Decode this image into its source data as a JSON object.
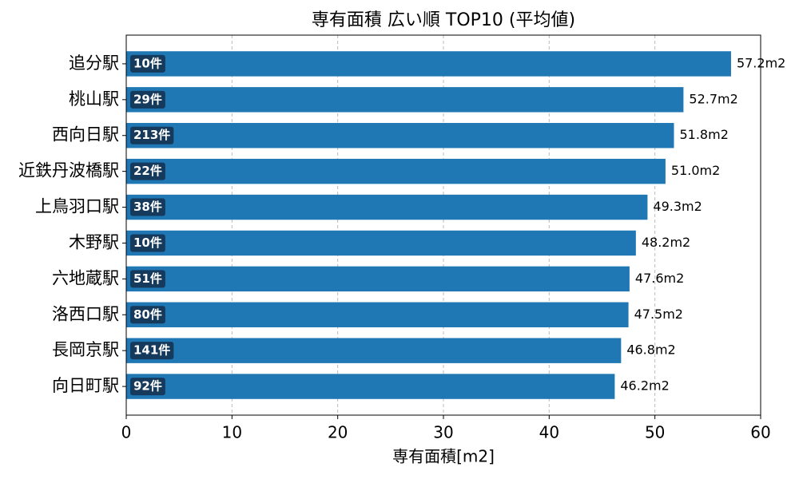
{
  "chart_data": {
    "type": "bar",
    "orientation": "horizontal",
    "title": "専有面積 広い順 TOP10 (平均値)",
    "x_label": "専有面積[m2]",
    "categories": [
      "追分駅",
      "桃山駅",
      "西向日駅",
      "近鉄丹波橋駅",
      "上鳥羽口駅",
      "木野駅",
      "六地蔵駅",
      "洛西口駅",
      "長岡京駅",
      "向日町駅"
    ],
    "values": [
      57.2,
      52.7,
      51.8,
      51.0,
      49.3,
      48.2,
      47.6,
      47.5,
      46.8,
      46.2
    ],
    "value_labels": [
      "57.2m2",
      "52.7m2",
      "51.8m2",
      "51.0m2",
      "49.3m2",
      "48.2m2",
      "47.6m2",
      "47.5m2",
      "46.8m2",
      "46.2m2"
    ],
    "count_labels": [
      "10件",
      "29件",
      "213件",
      "22件",
      "38件",
      "10件",
      "51件",
      "80件",
      "141件",
      "92件"
    ],
    "color": "#1f77b4",
    "xlim": [
      0,
      60
    ],
    "xticks": [
      0,
      10,
      20,
      30,
      40,
      50,
      60
    ],
    "grid": true
  }
}
